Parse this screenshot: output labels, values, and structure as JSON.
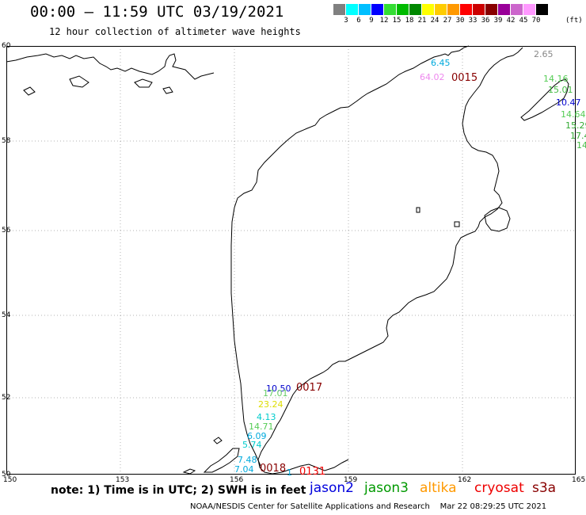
{
  "header": {
    "title": "00:00 – 11:59 UTC 03/19/2021",
    "subtitle": "12 hour collection of altimeter wave heights"
  },
  "scale": {
    "colors": [
      "#808080",
      "#00ffff",
      "#00bfff",
      "#0000ff",
      "#33dd33",
      "#00bb00",
      "#008800",
      "#ffff00",
      "#ffcc00",
      "#ff9900",
      "#ff0000",
      "#cc0000",
      "#880000",
      "#990099",
      "#cc66cc",
      "#ff99ff",
      "#000000"
    ],
    "labels": [
      "3",
      "6",
      "9",
      "12",
      "15",
      "18",
      "21",
      "24",
      "27",
      "30",
      "33",
      "36",
      "39",
      "42",
      "45",
      "70"
    ],
    "unit": "(ft)"
  },
  "axes": {
    "lat": [
      "60",
      "58",
      "56",
      "54",
      "52",
      "50"
    ],
    "lon": [
      "150",
      "153",
      "156",
      "159",
      "162",
      "165"
    ]
  },
  "observations": [
    {
      "text": "6.45",
      "color": "#00aadd"
    },
    {
      "text": "64.02",
      "color": "#ee88ee"
    },
    {
      "text": "2.65",
      "color": "#888888"
    },
    {
      "text": "14.16",
      "color": "#55cc55"
    },
    {
      "text": "15.01",
      "color": "#44bb44"
    },
    {
      "text": "10.47",
      "color": "#0000cc"
    },
    {
      "text": "14.64",
      "color": "#55cc55"
    },
    {
      "text": "15.29",
      "color": "#33aa33"
    },
    {
      "text": "17.4",
      "color": "#33aa33"
    },
    {
      "text": "14",
      "color": "#44bb44"
    },
    {
      "text": "10.50",
      "color": "#0000cc"
    },
    {
      "text": "17.01",
      "color": "#66cc66"
    },
    {
      "text": "23.24",
      "color": "#dddd00"
    },
    {
      "text": "4.13",
      "color": "#00cccc"
    },
    {
      "text": "14.71",
      "color": "#55cc55"
    },
    {
      "text": "6.09",
      "color": "#00aadd"
    },
    {
      "text": "5.74",
      "color": "#00cccc"
    },
    {
      "text": "7.48",
      "color": "#00aadd"
    },
    {
      "text": "7.04",
      "color": "#00aadd"
    },
    {
      "text": "1",
      "color": "#00aadd"
    }
  ],
  "times": [
    {
      "text": "0015",
      "color": "#880000"
    },
    {
      "text": "0017",
      "color": "#880000"
    },
    {
      "text": "0018",
      "color": "#880000"
    },
    {
      "text": "0131",
      "color": "#ee0000"
    }
  ],
  "footer": {
    "note": "note: 1) Time is in UTC; 2) SWH is in feet",
    "satellites": [
      {
        "name": "jason2",
        "color": "#0000dd"
      },
      {
        "name": "jason3",
        "color": "#009900"
      },
      {
        "name": "altika",
        "color": "#ff9900"
      },
      {
        "name": "cryosat",
        "color": "#ee0000"
      },
      {
        "name": "s3a",
        "color": "#880000"
      }
    ],
    "credit": "NOAA/NESDIS Center for Satellite Applications and Research    Mar 22 08:29:25 UTC 2021"
  }
}
